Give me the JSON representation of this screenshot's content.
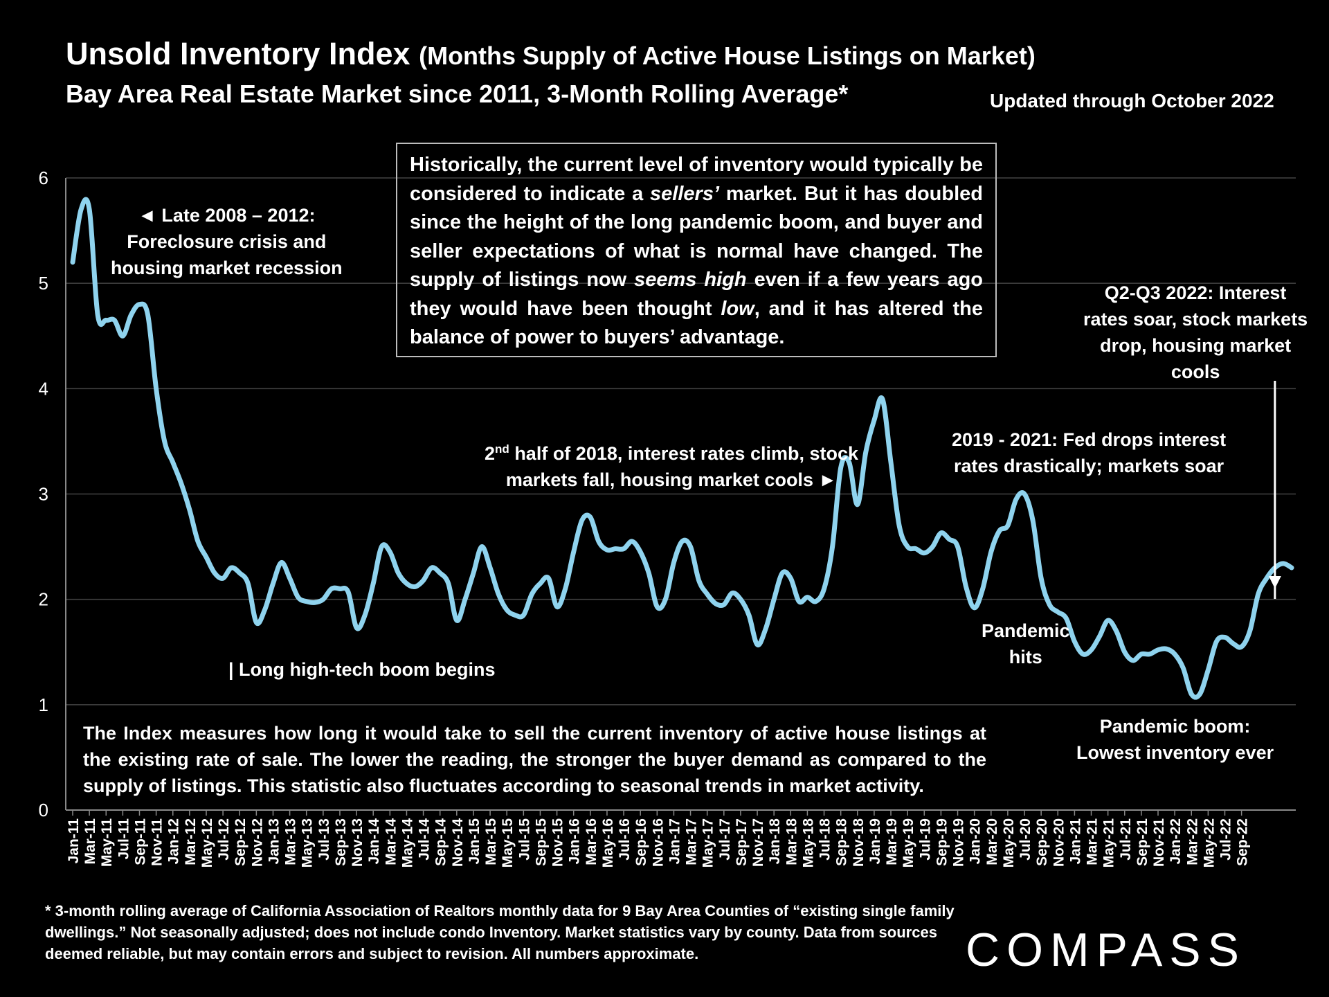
{
  "header": {
    "title_main": "Unsold Inventory Index",
    "title_sub": "(Months Supply of Active House Listings on Market)",
    "subtitle": "Bay Area Real Estate Market since 2011, 3-Month Rolling Average*",
    "updated": "Updated through October 2022"
  },
  "callout": {
    "part1": "Historically, the current level of inventory would typically be considered to indicate a ",
    "em1": "sellers’",
    "part2": " market. But it has doubled since the height of the long pandemic boom, and buyer and seller expectations of what is normal have changed. The supply of listings now ",
    "em2": "seems high",
    "part3": " even if a few years ago they would have been thought ",
    "em3": "low",
    "part4": ", and it has altered the balance of power to buyers’ advantage."
  },
  "annotations": {
    "late2008_l1": "◄ Late 2008 – 2012:",
    "late2008_l2": "Foreclosure crisis and",
    "late2008_l3": "housing market recession",
    "hightech": "| Long high-tech boom begins",
    "h2018_sup": "nd",
    "h2018_l1_a": "2",
    "h2018_l1_b": " half of 2018, interest rates climb, stock",
    "h2018_l2": "markets fall, housing market cools ►",
    "fed_l1": "2019 - 2021: Fed drops interest",
    "fed_l2": "rates drastically; markets soar",
    "q2_l1": "Q2-Q3 2022: Interest",
    "q2_l2": "rates soar, stock markets",
    "q2_l3": "drop, housing market",
    "q2_l4": "cools",
    "pandemic_l1": "Pandemic",
    "pandemic_l2": "hits",
    "boom_l1": "Pandemic boom:",
    "boom_l2": "Lowest inventory ever"
  },
  "index_note": "The Index measures how long it would take to sell the current inventory of active house listings at the existing rate of sale. The lower the reading, the stronger the buyer demand as compared to the supply of listings. This statistic also fluctuates according to seasonal trends in market activity.",
  "footnote": "* 3-month rolling average of California Association of Realtors monthly data for 9 Bay Area Counties of “existing single family dwellings.” Not seasonally adjusted; does not include condo Inventory. Market statistics vary by county. Data from sources deemed reliable, but may contain errors and subject to revision. All numbers approximate.",
  "logo": "COMPASS",
  "colors": {
    "line": "#8fd3ee",
    "grid": "#444444",
    "background": "#000000",
    "text": "#ffffff"
  },
  "chart_data": {
    "type": "line",
    "title": "Unsold Inventory Index (Months Supply of Active House Listings on Market)",
    "xlabel": "",
    "ylabel": "",
    "ylim": [
      0,
      6
    ],
    "yticks": [
      0,
      1,
      2,
      3,
      4,
      5,
      6
    ],
    "grid": true,
    "x_tick_labels": [
      "Jan-11",
      "Mar-11",
      "May-11",
      "Jul-11",
      "Sep-11",
      "Nov-11",
      "Jan-12",
      "Mar-12",
      "May-12",
      "Jul-12",
      "Sep-12",
      "Nov-12",
      "Jan-13",
      "Mar-13",
      "May-13",
      "Jul-13",
      "Sep-13",
      "Nov-13",
      "Jan-14",
      "Mar-14",
      "May-14",
      "Jul-14",
      "Sep-14",
      "Nov-14",
      "Jan-15",
      "Mar-15",
      "May-15",
      "Jul-15",
      "Sep-15",
      "Nov-15",
      "Jan-16",
      "Mar-16",
      "May-16",
      "Jul-16",
      "Sep-16",
      "Nov-16",
      "Jan-17",
      "Mar-17",
      "May-17",
      "Jul-17",
      "Sep-17",
      "Nov-17",
      "Jan-18",
      "Mar-18",
      "May-18",
      "Jul-18",
      "Sep-18",
      "Nov-18",
      "Jan-19",
      "Mar-19",
      "May-19",
      "Jul-19",
      "Sep-19",
      "Nov-19",
      "Jan-20",
      "Mar-20",
      "May-20",
      "Jul-20",
      "Sep-20",
      "Nov-20",
      "Jan-21",
      "Mar-21",
      "May-21",
      "Jul-21",
      "Sep-21",
      "Nov-21",
      "Jan-22",
      "Mar-22",
      "May-22",
      "Jul-22",
      "Sep-22"
    ],
    "series": [
      {
        "name": "3-Month Rolling Average",
        "start": "Jan-11",
        "values": [
          5.2,
          5.7,
          5.7,
          4.7,
          4.65,
          4.65,
          4.5,
          4.7,
          4.8,
          4.7,
          4.0,
          3.5,
          3.3,
          3.1,
          2.85,
          2.55,
          2.4,
          2.25,
          2.2,
          2.3,
          2.25,
          2.15,
          1.78,
          1.9,
          2.15,
          2.35,
          2.2,
          2.02,
          1.98,
          1.97,
          2.0,
          2.1,
          2.1,
          2.07,
          1.73,
          1.85,
          2.15,
          2.5,
          2.45,
          2.25,
          2.15,
          2.12,
          2.18,
          2.3,
          2.25,
          2.15,
          1.8,
          2.0,
          2.25,
          2.5,
          2.3,
          2.05,
          1.9,
          1.85,
          1.85,
          2.05,
          2.15,
          2.2,
          1.93,
          2.1,
          2.45,
          2.75,
          2.78,
          2.55,
          2.47,
          2.48,
          2.48,
          2.55,
          2.45,
          2.25,
          1.93,
          2.0,
          2.35,
          2.55,
          2.5,
          2.18,
          2.05,
          1.96,
          1.95,
          2.06,
          2.0,
          1.85,
          1.57,
          1.72,
          2.0,
          2.25,
          2.2,
          1.98,
          2.02,
          1.98,
          2.1,
          2.5,
          3.25,
          3.3,
          2.9,
          3.4,
          3.7,
          3.9,
          3.3,
          2.7,
          2.5,
          2.48,
          2.44,
          2.5,
          2.63,
          2.57,
          2.5,
          2.12,
          1.92,
          2.1,
          2.45,
          2.65,
          2.7,
          2.95,
          3.0,
          2.75,
          2.2,
          1.95,
          1.88,
          1.82,
          1.6,
          1.48,
          1.52,
          1.65,
          1.8,
          1.7,
          1.5,
          1.42,
          1.48,
          1.48,
          1.52,
          1.53,
          1.48,
          1.35,
          1.1,
          1.1,
          1.33,
          1.6,
          1.64,
          1.58,
          1.55,
          1.7,
          2.05,
          2.2,
          2.3,
          2.34,
          2.3
        ]
      }
    ],
    "annotation_arrow": {
      "points_to": "Aug-22",
      "value": 2.3
    }
  }
}
